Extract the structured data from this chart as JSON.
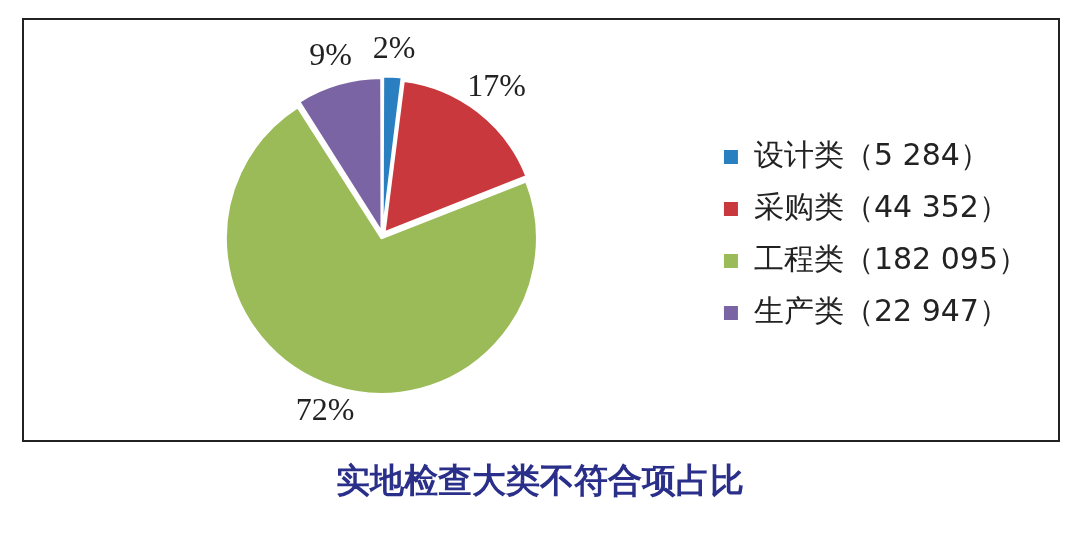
{
  "chart_data": {
    "type": "pie",
    "title": "实地检查大类不符合项占比",
    "categories": [
      "设计类（5 284）",
      "采购类（44 352）",
      "工程类（182 095）",
      "生产类（22 947）"
    ],
    "values": [
      2,
      17,
      72,
      9
    ],
    "value_labels": [
      "2%",
      "17%",
      "72%",
      "9%"
    ],
    "colors": [
      "#2a7fc0",
      "#c8383c",
      "#9bbb59",
      "#7b64a3"
    ],
    "legend": "right"
  }
}
